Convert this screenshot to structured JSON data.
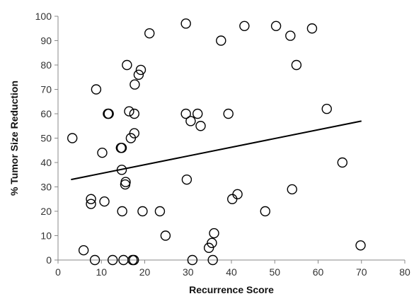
{
  "chart_data": {
    "type": "scatter",
    "xlabel": "Recurrence Score",
    "ylabel": "% Tumor Size Reduction",
    "xlim": [
      0,
      80
    ],
    "ylim": [
      0,
      100
    ],
    "x_ticks": [
      0,
      10,
      20,
      30,
      40,
      50,
      60,
      70,
      80
    ],
    "y_ticks": [
      0,
      10,
      20,
      30,
      40,
      50,
      60,
      70,
      80,
      90,
      100
    ],
    "grid": false,
    "points": [
      {
        "x": 3.3,
        "y": 50
      },
      {
        "x": 5.9,
        "y": 4
      },
      {
        "x": 7.6,
        "y": 25
      },
      {
        "x": 7.6,
        "y": 23
      },
      {
        "x": 8.5,
        "y": 0
      },
      {
        "x": 8.8,
        "y": 70
      },
      {
        "x": 10.2,
        "y": 44
      },
      {
        "x": 10.7,
        "y": 24
      },
      {
        "x": 11.5,
        "y": 60
      },
      {
        "x": 11.7,
        "y": 60
      },
      {
        "x": 12.6,
        "y": 0
      },
      {
        "x": 14.5,
        "y": 46
      },
      {
        "x": 14.7,
        "y": 46
      },
      {
        "x": 14.7,
        "y": 37
      },
      {
        "x": 14.8,
        "y": 20
      },
      {
        "x": 15.1,
        "y": 0
      },
      {
        "x": 15.5,
        "y": 31
      },
      {
        "x": 15.6,
        "y": 32
      },
      {
        "x": 15.9,
        "y": 80
      },
      {
        "x": 16.4,
        "y": 61
      },
      {
        "x": 16.8,
        "y": 50
      },
      {
        "x": 17.2,
        "y": 0
      },
      {
        "x": 17.5,
        "y": 0
      },
      {
        "x": 17.6,
        "y": 52
      },
      {
        "x": 17.6,
        "y": 60
      },
      {
        "x": 17.7,
        "y": 72
      },
      {
        "x": 18.6,
        "y": 76
      },
      {
        "x": 19.1,
        "y": 78
      },
      {
        "x": 19.5,
        "y": 20
      },
      {
        "x": 21.1,
        "y": 93
      },
      {
        "x": 23.5,
        "y": 20
      },
      {
        "x": 24.8,
        "y": 10
      },
      {
        "x": 29.5,
        "y": 97
      },
      {
        "x": 29.5,
        "y": 60
      },
      {
        "x": 29.7,
        "y": 33
      },
      {
        "x": 30.6,
        "y": 57
      },
      {
        "x": 31.0,
        "y": 0
      },
      {
        "x": 32.2,
        "y": 60
      },
      {
        "x": 32.9,
        "y": 55
      },
      {
        "x": 34.8,
        "y": 5
      },
      {
        "x": 35.5,
        "y": 7
      },
      {
        "x": 35.7,
        "y": 0
      },
      {
        "x": 36.0,
        "y": 11
      },
      {
        "x": 37.6,
        "y": 90
      },
      {
        "x": 39.3,
        "y": 60
      },
      {
        "x": 40.2,
        "y": 25
      },
      {
        "x": 41.4,
        "y": 27
      },
      {
        "x": 43.0,
        "y": 96
      },
      {
        "x": 47.8,
        "y": 20
      },
      {
        "x": 50.3,
        "y": 96
      },
      {
        "x": 53.6,
        "y": 92
      },
      {
        "x": 54.0,
        "y": 29
      },
      {
        "x": 55.0,
        "y": 80
      },
      {
        "x": 58.6,
        "y": 95
      },
      {
        "x": 62.0,
        "y": 62
      },
      {
        "x": 65.6,
        "y": 40
      },
      {
        "x": 69.8,
        "y": 6
      }
    ],
    "trendline": {
      "x": [
        3,
        70
      ],
      "y": [
        33,
        57
      ]
    }
  }
}
